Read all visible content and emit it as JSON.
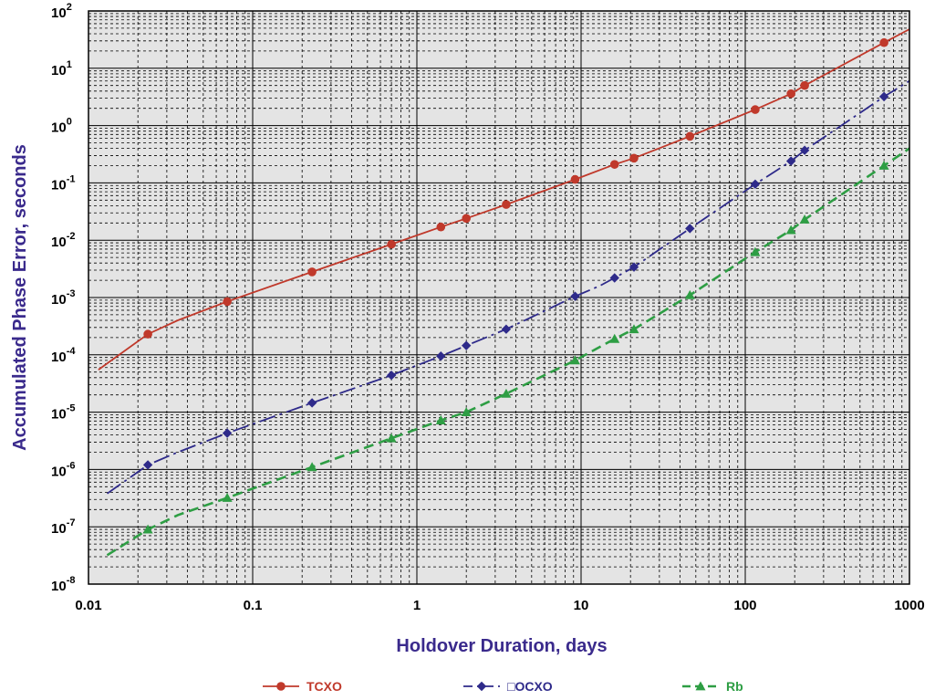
{
  "chart_data": {
    "type": "line",
    "xscale": "log",
    "yscale": "log",
    "xlim": [
      0.01,
      1000
    ],
    "ylim": [
      1e-08,
      100
    ],
    "grid": true,
    "legend_position": "bottom",
    "xlabel": "Holdover Duration, days",
    "ylabel": "Accumulated Phase Error, seconds",
    "x_tick_labels": [
      "0.01",
      "0.1",
      "1",
      "10",
      "100",
      "1000"
    ],
    "y_tick_labels": [
      {
        "base": "10",
        "exp": "-8"
      },
      {
        "base": "10",
        "exp": "-7"
      },
      {
        "base": "10",
        "exp": "-6"
      },
      {
        "base": "10",
        "exp": "-5"
      },
      {
        "base": "10",
        "exp": "-4"
      },
      {
        "base": "10",
        "exp": "-3"
      },
      {
        "base": "10",
        "exp": "-2"
      },
      {
        "base": "10",
        "exp": "-1"
      },
      {
        "base": "10",
        "exp": "0"
      },
      {
        "base": "10",
        "exp": "1"
      },
      {
        "base": "10",
        "exp": "2"
      }
    ],
    "series": [
      {
        "name": "TCXO",
        "color": "#c0392b",
        "marker": "circle",
        "dash": "solid",
        "line": [
          [
            0.0115,
            5.5e-05
          ],
          [
            0.023,
            0.00023
          ],
          [
            0.035,
            0.0004
          ],
          [
            0.07,
            0.00085
          ],
          [
            0.23,
            0.0028
          ],
          [
            0.7,
            0.0085
          ],
          [
            1.4,
            0.017
          ],
          [
            2,
            0.024
          ],
          [
            3.5,
            0.042
          ],
          [
            9.2,
            0.115
          ],
          [
            16,
            0.21
          ],
          [
            21,
            0.27
          ],
          [
            46,
            0.65
          ],
          [
            115,
            1.9
          ],
          [
            190,
            3.6
          ],
          [
            230,
            5.0
          ],
          [
            700,
            28
          ],
          [
            1000,
            48
          ]
        ],
        "points": [
          [
            0.023,
            0.00023
          ],
          [
            0.07,
            0.00085
          ],
          [
            0.23,
            0.0028
          ],
          [
            0.7,
            0.0085
          ],
          [
            1.4,
            0.017
          ],
          [
            2,
            0.024
          ],
          [
            3.5,
            0.042
          ],
          [
            9.2,
            0.115
          ],
          [
            16,
            0.21
          ],
          [
            21,
            0.27
          ],
          [
            46,
            0.65
          ],
          [
            115,
            1.9
          ],
          [
            190,
            3.6
          ],
          [
            230,
            5.0
          ],
          [
            700,
            28
          ]
        ]
      },
      {
        "name": "OCXO",
        "color": "#2e2a8a",
        "marker": "diamond",
        "dash": "dashdot",
        "line": [
          [
            0.013,
            3.8e-07
          ],
          [
            0.023,
            1.2e-06
          ],
          [
            0.035,
            2e-06
          ],
          [
            0.07,
            4.3e-06
          ],
          [
            0.23,
            1.45e-05
          ],
          [
            0.7,
            4.4e-05
          ],
          [
            1.4,
            9.5e-05
          ],
          [
            2,
            0.000145
          ],
          [
            3.5,
            0.00028
          ],
          [
            9.2,
            0.00105
          ],
          [
            13,
            0.0016
          ],
          [
            16,
            0.0022
          ],
          [
            21,
            0.0034
          ],
          [
            46,
            0.016
          ],
          [
            115,
            0.095
          ],
          [
            190,
            0.24
          ],
          [
            230,
            0.37
          ],
          [
            700,
            3.2
          ],
          [
            1000,
            6.0
          ]
        ],
        "points": [
          [
            0.023,
            1.2e-06
          ],
          [
            0.07,
            4.3e-06
          ],
          [
            0.23,
            1.45e-05
          ],
          [
            0.7,
            4.4e-05
          ],
          [
            1.4,
            9.5e-05
          ],
          [
            2,
            0.000145
          ],
          [
            3.5,
            0.00028
          ],
          [
            9.2,
            0.00105
          ],
          [
            16,
            0.0022
          ],
          [
            21,
            0.0034
          ],
          [
            46,
            0.016
          ],
          [
            115,
            0.095
          ],
          [
            190,
            0.24
          ],
          [
            230,
            0.37
          ],
          [
            700,
            3.2
          ]
        ]
      },
      {
        "name": "Rb",
        "color": "#2e9e44",
        "marker": "triangle",
        "dash": "dashed",
        "line": [
          [
            0.013,
            3.2e-08
          ],
          [
            0.023,
            9e-08
          ],
          [
            0.035,
            1.6e-07
          ],
          [
            0.07,
            3.2e-07
          ],
          [
            0.23,
            1.1e-06
          ],
          [
            0.7,
            3.5e-06
          ],
          [
            1.4,
            7.2e-06
          ],
          [
            2,
            1e-05
          ],
          [
            3.5,
            2.1e-05
          ],
          [
            9.2,
            8e-05
          ],
          [
            16,
            0.00019
          ],
          [
            21,
            0.00028
          ],
          [
            46,
            0.0011
          ],
          [
            115,
            0.0062
          ],
          [
            190,
            0.015
          ],
          [
            230,
            0.023
          ],
          [
            700,
            0.2
          ],
          [
            1000,
            0.4
          ]
        ],
        "points": [
          [
            0.023,
            9e-08
          ],
          [
            0.07,
            3.2e-07
          ],
          [
            0.23,
            1.1e-06
          ],
          [
            0.7,
            3.5e-06
          ],
          [
            1.4,
            7.2e-06
          ],
          [
            2,
            1e-05
          ],
          [
            3.5,
            2.1e-05
          ],
          [
            9.2,
            8e-05
          ],
          [
            16,
            0.00019
          ],
          [
            21,
            0.00028
          ],
          [
            46,
            0.0011
          ],
          [
            115,
            0.0062
          ],
          [
            190,
            0.015
          ],
          [
            230,
            0.023
          ],
          [
            700,
            0.2
          ]
        ]
      }
    ],
    "legend": [
      {
        "label": "TCXO",
        "color": "#c0392b"
      },
      {
        "label": "□OCXO",
        "color": "#2e2a8a"
      },
      {
        "label": "Rb",
        "color": "#2e9e44"
      }
    ]
  }
}
